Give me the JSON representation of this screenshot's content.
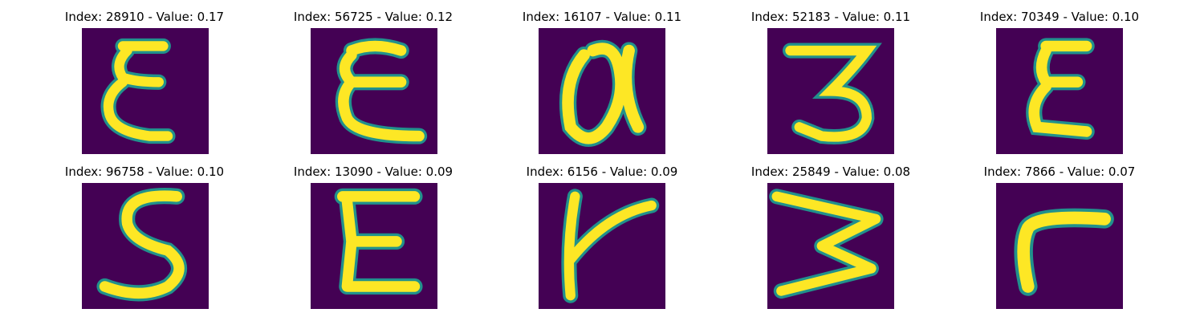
{
  "grid": {
    "colormap": [
      "#440154",
      "#21918c",
      "#fde725"
    ],
    "panels": [
      {
        "title": "Index: 28910 - Value: 0.17",
        "glyph": "E"
      },
      {
        "title": "Index: 56725 - Value: 0.12",
        "glyph": "E"
      },
      {
        "title": "Index: 16107 - Value: 0.11",
        "glyph": "Q"
      },
      {
        "title": "Index: 52183 - Value: 0.11",
        "glyph": "3"
      },
      {
        "title": "Index: 70349 - Value: 0.10",
        "glyph": "E"
      },
      {
        "title": "Index: 96758 - Value: 0.10",
        "glyph": "S"
      },
      {
        "title": "Index: 13090 - Value: 0.09",
        "glyph": "E"
      },
      {
        "title": "Index: 6156 - Value: 0.09",
        "glyph": "t"
      },
      {
        "title": "Index: 25849 - Value: 0.08",
        "glyph": "3"
      },
      {
        "title": "Index: 7866 - Value: 0.07",
        "glyph": "r"
      }
    ]
  }
}
